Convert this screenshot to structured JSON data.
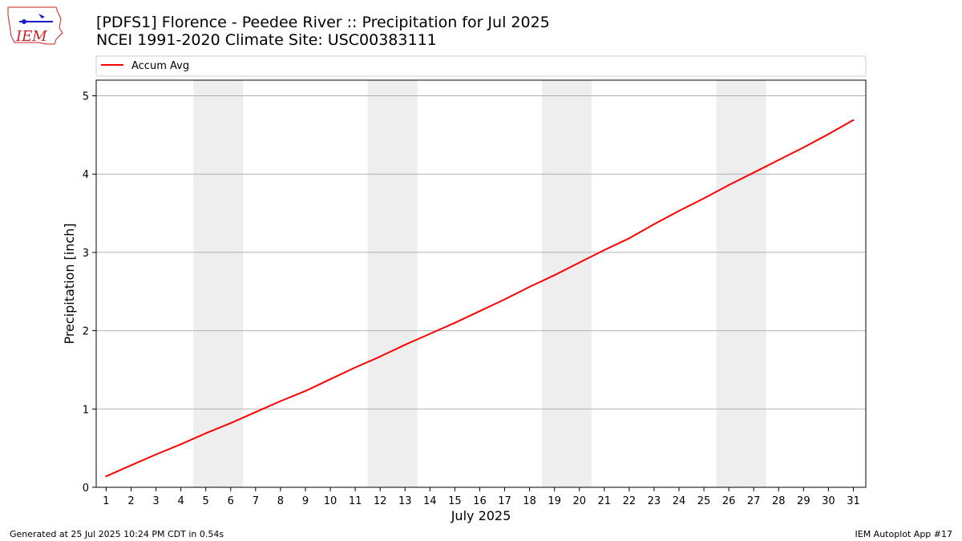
{
  "header": {
    "title_line1": "[PDFS1] Florence - Peedee River :: Precipitation for Jul 2025",
    "title_line2": "NCEI 1991-2020 Climate Site: USC00383111"
  },
  "logo": {
    "text": "IEM",
    "color": "#cc2222",
    "icon_color": "#1a1acc"
  },
  "footer": {
    "left": "Generated at 25 Jul 2025 10:24 PM CDT in 0.54s",
    "right": "IEM Autoplot App #17"
  },
  "chart_data": {
    "type": "line",
    "xlabel": "July 2025",
    "ylabel": "Precipitation [inch]",
    "xlim": [
      0.6,
      31.5
    ],
    "ylim": [
      0,
      5.2
    ],
    "xticks": [
      1,
      2,
      3,
      4,
      5,
      6,
      7,
      8,
      9,
      10,
      11,
      12,
      13,
      14,
      15,
      16,
      17,
      18,
      19,
      20,
      21,
      22,
      23,
      24,
      25,
      26,
      27,
      28,
      29,
      30,
      31
    ],
    "yticks": [
      0,
      1,
      2,
      3,
      4,
      5
    ],
    "grid": "horizontal",
    "legend": "top-left",
    "weekend_shading": [
      [
        4.5,
        6.5
      ],
      [
        11.5,
        13.5
      ],
      [
        18.5,
        20.5
      ],
      [
        25.5,
        27.5
      ]
    ],
    "weekend_color": "#eeeeee",
    "series": [
      {
        "name": "Accum Avg",
        "color": "#ff0000",
        "x": [
          1,
          2,
          3,
          4,
          5,
          6,
          7,
          8,
          9,
          10,
          11,
          12,
          13,
          14,
          15,
          16,
          17,
          18,
          19,
          20,
          21,
          22,
          23,
          24,
          25,
          26,
          27,
          28,
          29,
          30,
          31
        ],
        "y": [
          0.14,
          0.28,
          0.42,
          0.55,
          0.69,
          0.82,
          0.96,
          1.1,
          1.23,
          1.38,
          1.53,
          1.67,
          1.82,
          1.96,
          2.1,
          2.25,
          2.4,
          2.56,
          2.71,
          2.87,
          3.03,
          3.18,
          3.36,
          3.53,
          3.69,
          3.86,
          4.02,
          4.18,
          4.34,
          4.51,
          4.69
        ]
      }
    ]
  }
}
